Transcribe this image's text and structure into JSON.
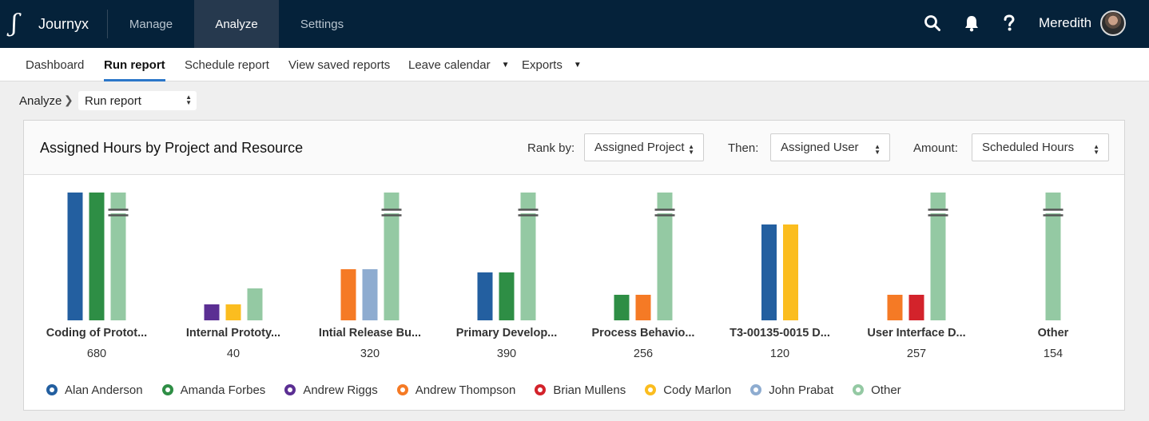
{
  "app": {
    "name": "Journyx",
    "logo_glyph": "ʃ"
  },
  "topnav": [
    {
      "label": "Manage",
      "active": false
    },
    {
      "label": "Analyze",
      "active": true
    },
    {
      "label": "Settings",
      "active": false
    }
  ],
  "user": {
    "name": "Meredith"
  },
  "icons": {
    "search": "search-icon",
    "bell": "bell-icon",
    "help": "help-icon"
  },
  "subnav": {
    "items": [
      {
        "label": "Dashboard",
        "active": false
      },
      {
        "label": "Run report",
        "active": true
      },
      {
        "label": "Schedule report",
        "active": false
      },
      {
        "label": "View saved reports",
        "active": false
      },
      {
        "label": "Leave calendar",
        "active": false,
        "dropdown": true
      },
      {
        "label": "Exports",
        "active": false,
        "dropdown": true
      }
    ]
  },
  "breadcrumb": {
    "root": "Analyze",
    "current": "Run report"
  },
  "panel": {
    "title": "Assigned Hours by Project and Resource",
    "rank_by_label": "Rank by:",
    "rank_by_value": "Assigned Project",
    "then_label": "Then:",
    "then_value": "Assigned User",
    "amount_label": "Amount:",
    "amount_value": "Scheduled Hours"
  },
  "colors": {
    "Alan Anderson": "#235fa0",
    "Amanda Forbes": "#2e8e45",
    "Andrew Riggs": "#5b2f93",
    "Andrew Thompson": "#f57a25",
    "Brian Mullens": "#d3232b",
    "Cody Marlon": "#fbbd1f",
    "John Prabat": "#8eacd0",
    "Other": "#94c9a3"
  },
  "chart_data": {
    "type": "bar",
    "categories": [
      "Coding of Protot...",
      "Internal Prototy...",
      "Intial Release Bu...",
      "Primary Develop...",
      "Process Behavio...",
      "T3-00135-0015 D...",
      "User Interface D...",
      "Other"
    ],
    "totals": [
      680,
      40,
      320,
      390,
      256,
      120,
      257,
      154
    ],
    "bars": [
      [
        {
          "series": "Alan Anderson",
          "value": 85
        },
        {
          "series": "Amanda Forbes",
          "value": 85
        },
        {
          "series": "Other",
          "value": 510,
          "broken": true
        }
      ],
      [
        {
          "series": "Andrew Riggs",
          "value": 10
        },
        {
          "series": "Cody Marlon",
          "value": 10
        },
        {
          "series": "Other",
          "value": 20
        }
      ],
      [
        {
          "series": "Andrew Thompson",
          "value": 32
        },
        {
          "series": "John Prabat",
          "value": 32
        },
        {
          "series": "Other",
          "value": 256,
          "broken": true
        }
      ],
      [
        {
          "series": "Alan Anderson",
          "value": 30
        },
        {
          "series": "Amanda Forbes",
          "value": 30
        },
        {
          "series": "Other",
          "value": 330,
          "broken": true
        }
      ],
      [
        {
          "series": "Amanda Forbes",
          "value": 16
        },
        {
          "series": "Andrew Thompson",
          "value": 16
        },
        {
          "series": "Other",
          "value": 224,
          "broken": true
        }
      ],
      [
        {
          "series": "Alan Anderson",
          "value": 60
        },
        {
          "series": "Cody Marlon",
          "value": 60
        }
      ],
      [
        {
          "series": "Andrew Thompson",
          "value": 16
        },
        {
          "series": "Brian Mullens",
          "value": 16
        },
        {
          "series": "Other",
          "value": 225,
          "broken": true
        }
      ],
      [
        {
          "series": "Other",
          "value": 154,
          "broken": true
        }
      ]
    ],
    "ylim": [
      0,
      80
    ],
    "series": [
      "Alan Anderson",
      "Amanda Forbes",
      "Andrew Riggs",
      "Andrew Thompson",
      "Brian Mullens",
      "Cody Marlon",
      "John Prabat",
      "Other"
    ],
    "legend_position": "bottom-left",
    "grid": false
  }
}
